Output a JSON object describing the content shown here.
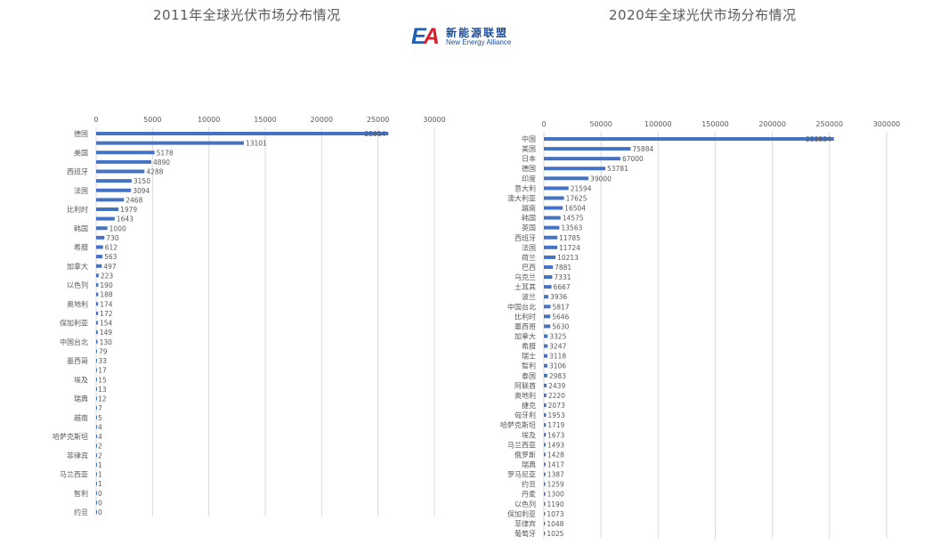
{
  "logo": {
    "mark_e": "E",
    "mark_a": "A",
    "cn": "新能源联盟",
    "en": "New Energy  Alliance"
  },
  "colors": {
    "bar": "#4472c4",
    "grid": "#d9d9d9",
    "text": "#595959"
  },
  "chart_data": [
    {
      "type": "bar",
      "orientation": "horizontal",
      "title": "2011年全球光伏市场分布情况",
      "xlim": [
        0,
        30000
      ],
      "ticks": [
        0,
        5000,
        10000,
        15000,
        20000,
        25000,
        30000
      ],
      "axis_position": "top",
      "grid": true,
      "categories": [
        "德国",
        "",
        "美国",
        "",
        "西班牙",
        "",
        "法国",
        "",
        "比利时",
        "",
        "韩国",
        "",
        "希腊",
        "",
        "加拿大",
        "",
        "以色列",
        "",
        "奥地利",
        "",
        "保加利亚",
        "",
        "中国台北",
        "",
        "墨西哥",
        "",
        "埃及",
        "",
        "瑞典",
        "",
        "越南",
        "",
        "哈萨克斯坦",
        "",
        "菲律宾",
        "",
        "马兰西亚",
        "",
        "智利",
        "",
        "约旦"
      ],
      "values": [
        25914,
        13101,
        5178,
        4890,
        4288,
        3150,
        3094,
        2468,
        1979,
        1643,
        1000,
        730,
        612,
        563,
        497,
        223,
        190,
        188,
        174,
        172,
        154,
        149,
        130,
        79,
        33,
        17,
        15,
        13,
        12,
        7,
        5,
        4,
        4,
        2,
        2,
        1,
        1,
        1,
        0,
        0,
        0
      ]
    },
    {
      "type": "bar",
      "orientation": "horizontal",
      "title": "2020年全球光伏市场分布情况",
      "xlim": [
        0,
        300000
      ],
      "ticks": [
        0,
        50000,
        100000,
        150000,
        200000,
        250000,
        300000
      ],
      "axis_position": "top",
      "grid": true,
      "categories": [
        "中国",
        "美国",
        "日本",
        "德国",
        "印度",
        "意大利",
        "澳大利亚",
        "越南",
        "韩国",
        "英国",
        "西班牙",
        "法国",
        "荷兰",
        "巴西",
        "乌克兰",
        "土耳其",
        "波兰",
        "中国台北",
        "比利时",
        "墨西哥",
        "加拿大",
        "希腊",
        "瑞士",
        "智利",
        "泰国",
        "阿联酋",
        "奥地利",
        "捷克",
        "匈牙利",
        "哈萨克斯坦",
        "埃及",
        "马兰西亚",
        "俄罗斯",
        "瑞典",
        "罗马尼亚",
        "约旦",
        "丹麦",
        "以色列",
        "保加利亚",
        "菲律宾",
        "葡萄牙"
      ],
      "values": [
        253834,
        75884,
        67000,
        53781,
        39000,
        21594,
        17625,
        16504,
        14575,
        13563,
        11785,
        11724,
        10213,
        7881,
        7331,
        6667,
        3936,
        5817,
        5646,
        5630,
        3325,
        3247,
        3118,
        3106,
        2983,
        2439,
        2220,
        2073,
        1953,
        1719,
        1673,
        1493,
        1428,
        1417,
        1387,
        1259,
        1300,
        1190,
        1073,
        1048,
        1025
      ]
    }
  ]
}
